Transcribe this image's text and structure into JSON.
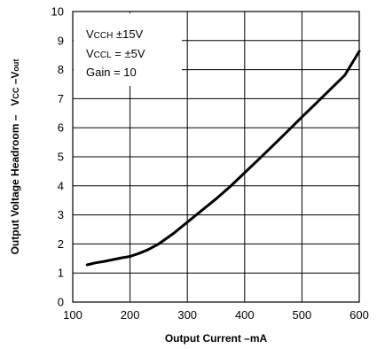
{
  "chart_data": {
    "type": "line",
    "xlabel": "Output Current –mA",
    "ylabel_main": "Output Voltage Headroom –",
    "ylabel_vcc_base": "V",
    "ylabel_vcc_sub": "CC",
    "ylabel_dash": " –V",
    "ylabel_out_sub": "out",
    "xlim": [
      100,
      600
    ],
    "ylim": [
      0,
      10
    ],
    "x_ticks": [
      "100",
      "200",
      "300",
      "400",
      "500",
      "600"
    ],
    "y_ticks": [
      "0",
      "1",
      "2",
      "3",
      "4",
      "5",
      "6",
      "7",
      "8",
      "9",
      "10"
    ],
    "grid": true,
    "annotation": {
      "line1_base": "V",
      "line1_sub": "CCH",
      "line1_value": " ±15V",
      "line2_base": "V",
      "line2_sub": "CCL",
      "line2_value": " = ±5V",
      "line3": "Gain = 10"
    },
    "series": [
      {
        "color": "#000000",
        "x": [
          125,
          140,
          155,
          170,
          185,
          200,
          215,
          230,
          250,
          275,
          300,
          325,
          350,
          375,
          400,
          425,
          450,
          475,
          500,
          525,
          550,
          575,
          600
        ],
        "y": [
          1.28,
          1.35,
          1.4,
          1.46,
          1.52,
          1.57,
          1.67,
          1.79,
          2.0,
          2.35,
          2.75,
          3.15,
          3.55,
          3.98,
          4.45,
          4.92,
          5.4,
          5.88,
          6.37,
          6.85,
          7.33,
          7.81,
          8.63
        ]
      }
    ]
  }
}
